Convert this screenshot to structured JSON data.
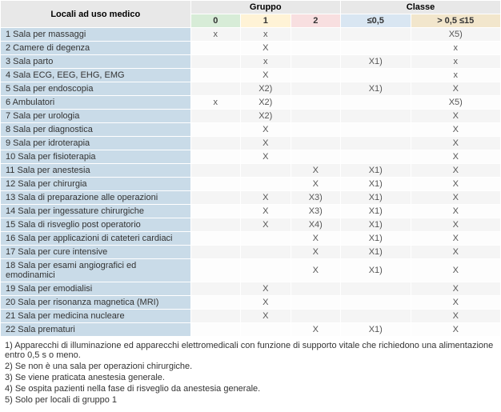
{
  "headers": {
    "rooms": "Locali ad uso medico",
    "group": "Gruppo",
    "class": "Classe",
    "g0": "0",
    "g1": "1",
    "g2": "2",
    "c1": "≤0,5",
    "c2": "> 0,5 ≤15"
  },
  "rows": [
    {
      "n": "1",
      "label": "Sala per massaggi",
      "g0": "x",
      "g1": "x",
      "g2": "",
      "c1": "",
      "c2": "X5)"
    },
    {
      "n": "2",
      "label": "Camere di degenza",
      "g0": "",
      "g1": "X",
      "g2": "",
      "c1": "",
      "c2": "x"
    },
    {
      "n": "3",
      "label": "Sala parto",
      "g0": "",
      "g1": "x",
      "g2": "",
      "c1": "X1)",
      "c2": "x"
    },
    {
      "n": "4",
      "label": "Sala ECG, EEG, EHG, EMG",
      "g0": "",
      "g1": "X",
      "g2": "",
      "c1": "",
      "c2": "x"
    },
    {
      "n": "5",
      "label": "Sala per endoscopia",
      "g0": "",
      "g1": "X2)",
      "g2": "",
      "c1": "X1)",
      "c2": "X"
    },
    {
      "n": "6",
      "label": "Ambulatori",
      "g0": "x",
      "g1": "X2)",
      "g2": "",
      "c1": "",
      "c2": "X5)"
    },
    {
      "n": "7",
      "label": "Sala per urologia",
      "g0": "",
      "g1": "X2)",
      "g2": "",
      "c1": "",
      "c2": "X"
    },
    {
      "n": "8",
      "label": "Sala per diagnostica",
      "g0": "",
      "g1": "X",
      "g2": "",
      "c1": "",
      "c2": "X"
    },
    {
      "n": "9",
      "label": "Sala per idroterapia",
      "g0": "",
      "g1": "X",
      "g2": "",
      "c1": "",
      "c2": "X"
    },
    {
      "n": "10",
      "label": "Sala per fisioterapia",
      "g0": "",
      "g1": "X",
      "g2": "",
      "c1": "",
      "c2": "X"
    },
    {
      "n": "11",
      "label": "Sala per anestesia",
      "g0": "",
      "g1": "",
      "g2": "X",
      "c1": "X1)",
      "c2": "X"
    },
    {
      "n": "12",
      "label": "Sala per chirurgia",
      "g0": "",
      "g1": "",
      "g2": "X",
      "c1": "X1)",
      "c2": "X"
    },
    {
      "n": "13",
      "label": "Sala di preparazione alle operazioni",
      "g0": "",
      "g1": "X",
      "g2": "X3)",
      "c1": "X1)",
      "c2": "X"
    },
    {
      "n": "14",
      "label": "Sala per ingessature chirurgiche",
      "g0": "",
      "g1": "X",
      "g2": "X3)",
      "c1": "X1)",
      "c2": "X"
    },
    {
      "n": "15",
      "label": "Sala di risveglio post operatorio",
      "g0": "",
      "g1": "X",
      "g2": "X4)",
      "c1": "X1)",
      "c2": "X"
    },
    {
      "n": "16",
      "label": "Sala per applicazioni di cateteri cardiaci",
      "g0": "",
      "g1": "",
      "g2": "X",
      "c1": "X1)",
      "c2": "X"
    },
    {
      "n": "17",
      "label": "Sala per cure intensive",
      "g0": "",
      "g1": "",
      "g2": "X",
      "c1": "X1)",
      "c2": "X"
    },
    {
      "n": "18",
      "label": "Sala per esami angiografici ed emodinamici",
      "g0": "",
      "g1": "",
      "g2": "X",
      "c1": "X1)",
      "c2": "X"
    },
    {
      "n": "19",
      "label": "Sala per emodialisi",
      "g0": "",
      "g1": "X",
      "g2": "",
      "c1": "",
      "c2": "X"
    },
    {
      "n": "20",
      "label": "Sala per risonanza magnetica (MRI)",
      "g0": "",
      "g1": "X",
      "g2": "",
      "c1": "",
      "c2": "X"
    },
    {
      "n": "21",
      "label": "Sala per medicina nucleare",
      "g0": "",
      "g1": "X",
      "g2": "",
      "c1": "",
      "c2": "X"
    },
    {
      "n": "22",
      "label": "Sala prematuri",
      "g0": "",
      "g1": "",
      "g2": "X",
      "c1": "X1)",
      "c2": "X"
    }
  ],
  "notes": [
    "1) Apparecchi di illuminazione ed apparecchi elettromedicali con funzione di supporto vitale che richiedono una alimentazione entro 0,5 s o meno.",
    "2) Se non è una sala per operazioni chirurgiche.",
    "3) Se viene praticata anestesia generale.",
    "4) Se ospita pazienti nella fase di risveglio da anestesia generale.",
    "5) Solo per locali di gruppo 1"
  ],
  "colors": {
    "row_label_bg": "#c9dbe8",
    "hdr_main_bg": "#e8e8e8",
    "g0_bg": "#d7ecd7",
    "g1_bg": "#fff3d6",
    "g2_bg": "#f8dfe0",
    "c1_bg": "#d9e6f2",
    "c2_bg": "#f2e6cc"
  },
  "layout": {
    "col_widths_pct": [
      38,
      10,
      10,
      10,
      14,
      18
    ],
    "font_family": "Verdana",
    "font_size_pt": 8
  }
}
